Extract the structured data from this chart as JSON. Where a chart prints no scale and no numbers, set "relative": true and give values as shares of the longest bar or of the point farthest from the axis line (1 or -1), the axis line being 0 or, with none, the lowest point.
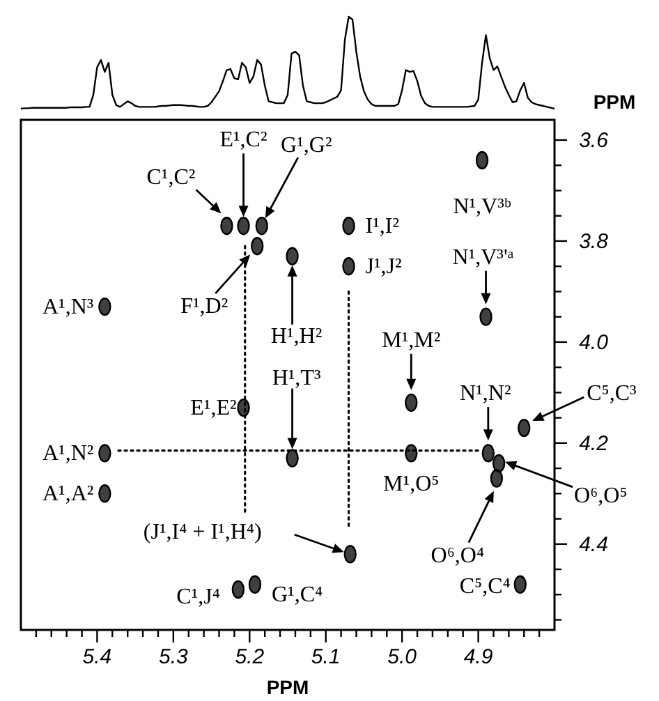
{
  "chart_data": [
    {
      "type": "line",
      "relative": true,
      "xlabel": "PPM",
      "categories": [
        null,
        null,
        null,
        null,
        null,
        null,
        null,
        null,
        null,
        null,
        null,
        null,
        null,
        null,
        null,
        null,
        null,
        null,
        null,
        null,
        null,
        null,
        null,
        null,
        null,
        null,
        null,
        null,
        null,
        null,
        null,
        null,
        null,
        null,
        null,
        null,
        null,
        null,
        null,
        null,
        null,
        null,
        null,
        null,
        null,
        null,
        null,
        null,
        null,
        null,
        null,
        null,
        null,
        null,
        null,
        null,
        null,
        null,
        null,
        null,
        null,
        null,
        null,
        null,
        null,
        null,
        null,
        null,
        null,
        null,
        null,
        null,
        null,
        null,
        null,
        null,
        null,
        null,
        null,
        null,
        null,
        null,
        null,
        null,
        null,
        null,
        null,
        null,
        null,
        null,
        null,
        null,
        null,
        null,
        null,
        null,
        null,
        null,
        null,
        null,
        null,
        null,
        null,
        null,
        null,
        null,
        null,
        null,
        null,
        null,
        null,
        null,
        null,
        null,
        null,
        null,
        null,
        null,
        null,
        null,
        null,
        null,
        null,
        null,
        null,
        null,
        null,
        null,
        null,
        null,
        null,
        null,
        null,
        null,
        null,
        null,
        null,
        null,
        null,
        null,
        null
      ],
      "series": [
        {
          "color": "#000000",
          "values": [
            0,
            0.005,
            0.005,
            0.01,
            0.01,
            0.01,
            0.01,
            0.01,
            0.01,
            0.01,
            0.01,
            0.01,
            0.01,
            0.015,
            0.015,
            0.015,
            0.015,
            0.02,
            0.02,
            0.15,
            0.45,
            0.53,
            0.4,
            0.5,
            0.15,
            0.04,
            0.02,
            0.05,
            0.08,
            0.06,
            0.03,
            0.02,
            0.02,
            0.02,
            0.02,
            0.02,
            0.025,
            0.03,
            0.03,
            0.035,
            0.04,
            0.04,
            0.04,
            0.035,
            0.03,
            0.03,
            0.025,
            0.02,
            0.02,
            0.03,
            0.07,
            0.13,
            0.19,
            0.3,
            0.42,
            0.43,
            0.33,
            0.32,
            0.5,
            0.45,
            0.28,
            0.35,
            0.53,
            0.48,
            0.25,
            0.08,
            0.07,
            0.06,
            0.06,
            0.06,
            0.15,
            0.6,
            0.62,
            0.58,
            0.25,
            0.08,
            0.07,
            0.06,
            0.06,
            0.06,
            0.07,
            0.09,
            0.11,
            0.13,
            0.2,
            0.75,
            1.0,
            0.97,
            0.62,
            0.35,
            0.19,
            0.1,
            0.05,
            0.03,
            0.03,
            0.03,
            0.03,
            0.03,
            0.03,
            0.05,
            0.2,
            0.42,
            0.4,
            0.41,
            0.3,
            0.14,
            0.06,
            0.03,
            0.02,
            0.02,
            0.02,
            0.02,
            0.02,
            0.02,
            0.02,
            0.02,
            0.02,
            0.02,
            0.025,
            0.03,
            0.1,
            0.5,
            0.8,
            0.55,
            0.42,
            0.46,
            0.35,
            0.24,
            0.15,
            0.07,
            0.08,
            0.2,
            0.28,
            0.12,
            0.07,
            0.05,
            0.04,
            0.03,
            0.02,
            0.01,
            0
          ]
        }
      ]
    },
    {
      "type": "scatter",
      "xlabel": "PPM",
      "xlim": [
        5.5,
        4.8
      ],
      "ylim": [
        4.57,
        3.56
      ],
      "xticks": [
        {
          "value": 5.48,
          "label": null
        },
        {
          "value": 5.46,
          "label": null
        },
        {
          "value": 5.44,
          "label": null
        },
        {
          "value": 5.42,
          "label": null
        },
        5.4,
        {
          "value": 5.38,
          "label": null
        },
        {
          "value": 5.36,
          "label": null
        },
        {
          "value": 5.34,
          "label": null
        },
        {
          "value": 5.32,
          "label": null
        },
        5.3,
        {
          "value": 5.28,
          "label": null
        },
        {
          "value": 5.26,
          "label": null
        },
        {
          "value": 5.24,
          "label": null
        },
        {
          "value": 5.22,
          "label": null
        },
        5.2,
        {
          "value": 5.18,
          "label": null
        },
        {
          "value": 5.16,
          "label": null
        },
        {
          "value": 5.14,
          "label": null
        },
        {
          "value": 5.12,
          "label": null
        },
        5.1,
        {
          "value": 5.08,
          "label": null
        },
        {
          "value": 5.06,
          "label": null
        },
        {
          "value": 5.04,
          "label": null
        },
        {
          "value": 5.02,
          "label": null
        },
        {
          "value": 5,
          "label": "5.0"
        },
        {
          "value": 4.98,
          "label": null
        },
        {
          "value": 4.96,
          "label": null
        },
        {
          "value": 4.94,
          "label": null
        },
        {
          "value": 4.92,
          "label": null
        },
        4.9,
        {
          "value": 4.88,
          "label": null
        },
        {
          "value": 4.86,
          "label": null
        },
        {
          "value": 4.84,
          "label": null
        },
        {
          "value": 4.82,
          "label": null
        }
      ],
      "yticks": [
        3.6,
        {
          "value": 3.65,
          "label": null
        },
        {
          "value": 3.7,
          "label": null
        },
        {
          "value": 3.75,
          "label": null
        },
        3.8,
        {
          "value": 3.85,
          "label": null
        },
        {
          "value": 3.9,
          "label": null
        },
        {
          "value": 3.95,
          "label": null
        },
        {
          "value": 4,
          "label": "4.0"
        },
        {
          "value": 4.05,
          "label": null
        },
        {
          "value": 4.1,
          "label": null
        },
        {
          "value": 4.15,
          "label": null
        },
        4.2,
        {
          "value": 4.25,
          "label": null
        },
        {
          "value": 4.3,
          "label": null
        },
        {
          "value": 4.35,
          "label": null
        },
        4.4,
        {
          "value": 4.45,
          "label": null
        },
        {
          "value": 4.5,
          "label": null
        },
        {
          "value": 4.55,
          "label": null
        }
      ],
      "series": [
        {
          "color": "#000000",
          "marker": "circle",
          "x": [
            5.23,
            5.208,
            5.184,
            5.19,
            5.07,
            5.07,
            4.895,
            4.89,
            5.39,
            5.144,
            4.988,
            5.208,
            5.144,
            4.84,
            4.887,
            5.39,
            4.988,
            4.873,
            5.39,
            4.876,
            5.068,
            5.215,
            5.193,
            4.845
          ],
          "values": [
            3.77,
            3.77,
            3.77,
            3.81,
            3.77,
            3.85,
            3.64,
            3.95,
            3.93,
            3.83,
            4.12,
            4.13,
            4.23,
            4.17,
            4.22,
            4.22,
            4.22,
            4.24,
            4.3,
            4.27,
            4.42,
            4.49,
            4.48,
            4.48
          ]
        },
        {
          "type": "line",
          "color": "#000000",
          "marker": "none",
          "line_style": "dotted",
          "x": [
            5.206,
            5.206
          ],
          "values": [
            3.81,
            4.34
          ]
        },
        {
          "type": "line",
          "color": "#000000",
          "marker": "none",
          "line_style": "dotted",
          "x": [
            5.07,
            5.07
          ],
          "values": [
            3.9,
            4.37
          ]
        },
        {
          "type": "line",
          "color": "#000000",
          "marker": "none",
          "line_style": "dotted",
          "x": [
            5.372,
            4.9
          ],
          "values": [
            4.215,
            4.215
          ]
        }
      ],
      "annotations": [
        {
          "text": "C¹,C²",
          "x": 5.23,
          "y": 3.77
        },
        "E¹,C²",
        "G¹,G²",
        {
          "text": "F¹,D²",
          "x": 5.19,
          "y": 3.81
        },
        {
          "text": "I¹,I²",
          "x": 5.07,
          "y": 3.77
        },
        {
          "text": "J¹,J²",
          "x": 5.07,
          "y": 3.85
        },
        {
          "text": "N¹,V³ᵇ",
          "x": 4.895,
          "y": 3.64
        },
        {
          "text": "N¹,V³'ᵃ",
          "x": 4.89,
          "y": 3.95
        },
        {
          "text": "A¹,N³",
          "x": 5.39,
          "y": 3.93
        },
        "H¹,H²",
        {
          "text": "M¹,M²",
          "x": 4.988,
          "y": 4.12
        },
        {
          "text": "E¹,E²",
          "x": 5.208,
          "y": 4.13
        },
        "H¹,T³",
        {
          "text": "C⁵,C³",
          "x": 4.84,
          "y": 4.17
        },
        {
          "text": "N¹,N²",
          "x": 4.887,
          "y": 4.22
        },
        {
          "text": "A¹,N²",
          "x": 5.39,
          "y": 4.22
        },
        {
          "text": "M¹,O⁵",
          "x": 4.988,
          "y": 4.22
        },
        "O⁶,O⁵",
        {
          "text": "A¹,A²",
          "x": 5.39,
          "y": 4.3
        },
        {
          "text": "O⁶,O⁴",
          "x": 4.876,
          "y": 4.27
        },
        "(J¹,I⁴ + I¹,H⁴)",
        {
          "text": "C¹,J⁴",
          "x": 5.215,
          "y": 4.49
        },
        {
          "text": "G¹,C⁴",
          "x": 5.193,
          "y": 4.48
        },
        {
          "text": "C⁵,C⁴",
          "x": 4.845,
          "y": 4.48
        }
      ]
    }
  ]
}
